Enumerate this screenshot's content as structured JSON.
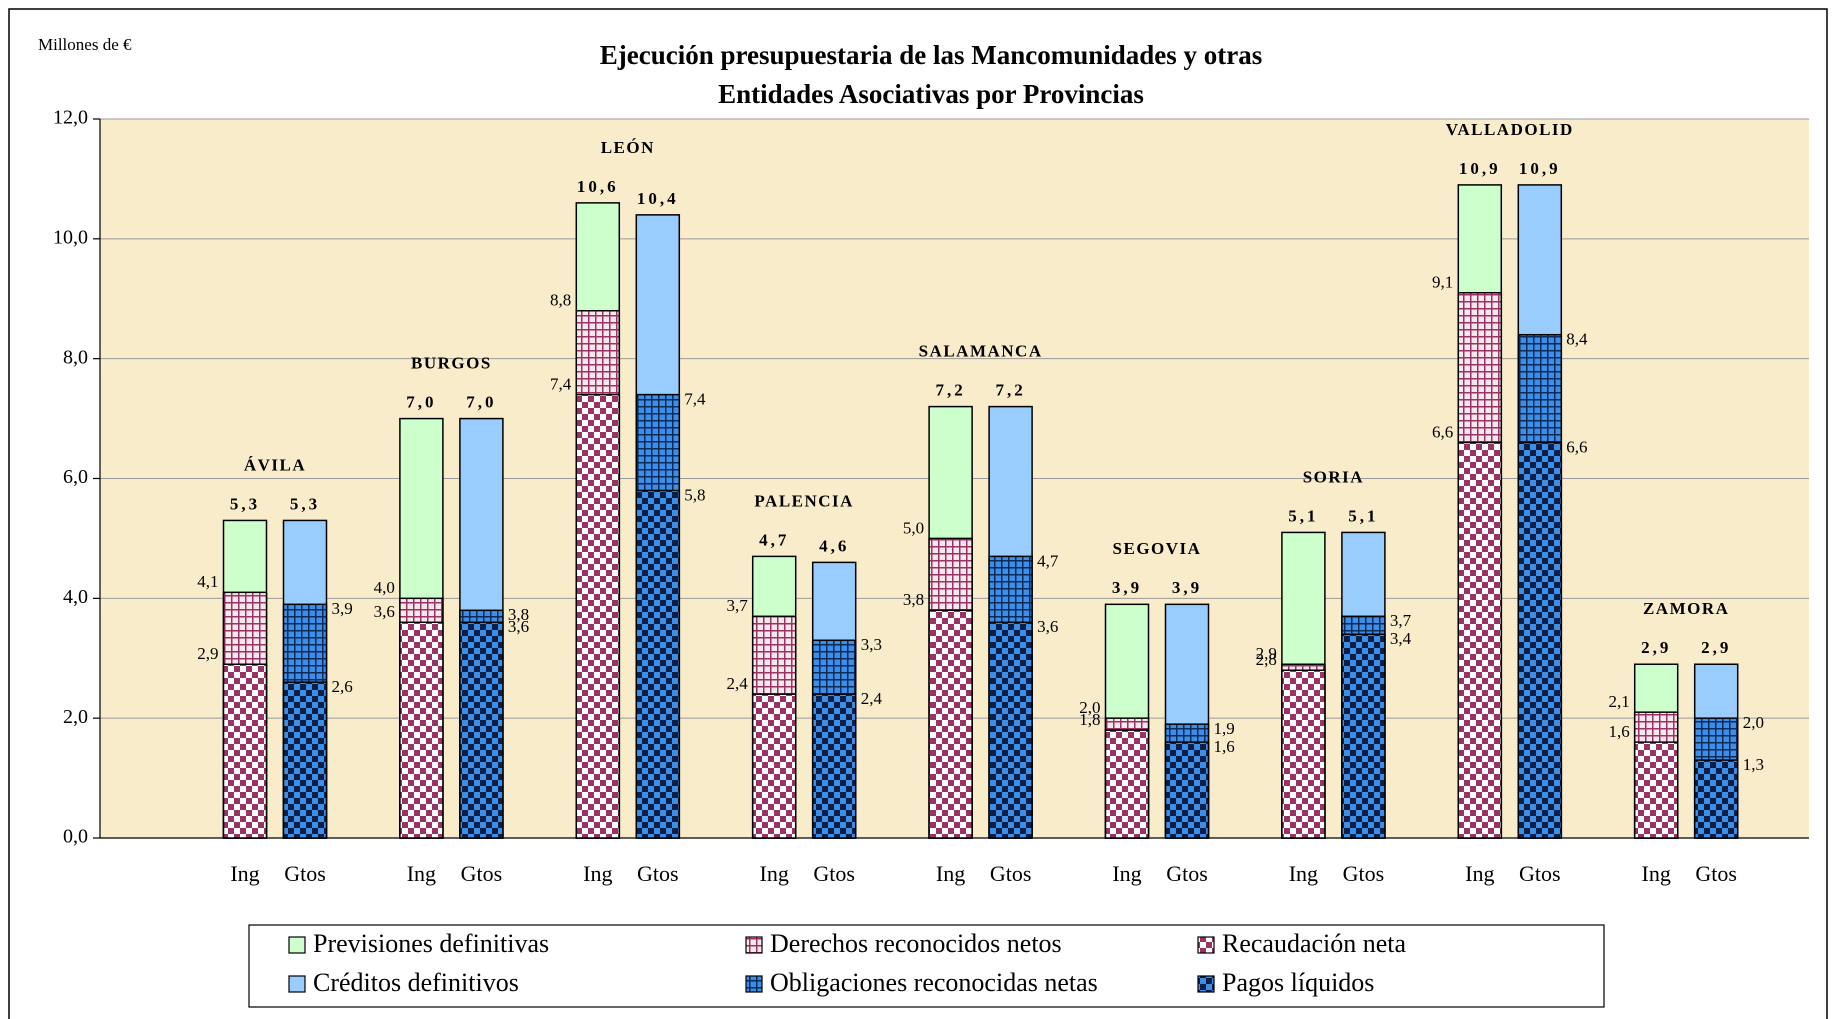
{
  "chart_data": {
    "type": "bar",
    "unit_label": "Millones de €",
    "title": [
      "Ejecución presupuestaria de las Mancomunidades y otras",
      "Entidades Asociativas  por Provincias"
    ],
    "categories": [
      "ÁVILA",
      "BURGOS",
      "LEÓN",
      "PALENCIA",
      "SALAMANCA",
      "SEGOVIA",
      "SORIA",
      "VALLADOLID",
      "ZAMORA"
    ],
    "ylim": [
      0,
      12
    ],
    "yticks": [
      {
        "value": 0,
        "label": "0,0"
      },
      {
        "value": 2,
        "label": "2,0"
      },
      {
        "value": 4,
        "label": "4,0"
      },
      {
        "value": 6,
        "label": "6,0"
      },
      {
        "value": 8,
        "label": "8,0"
      },
      {
        "value": 10,
        "label": "10,0"
      },
      {
        "value": 12,
        "label": "12,0"
      }
    ],
    "grid": true,
    "legend": "bottom",
    "bars": [
      {
        "label": "Ing",
        "series": [
          {
            "name": "Previsiones definitivas",
            "pattern": "solid",
            "color": "#ccffcc",
            "values": [
              5.3,
              7.0,
              10.6,
              4.7,
              7.2,
              3.9,
              5.1,
              10.9,
              2.9
            ],
            "value_labels": [
              "5,3",
              "7,0",
              "10,6",
              "4,7",
              "7,2",
              "3,9",
              "5,1",
              "10,9",
              "2,9"
            ]
          },
          {
            "name": "Derechos reconocidos netos",
            "pattern": "grid",
            "color": "#fbe8ec",
            "pattern_color": "#993366",
            "values": [
              4.1,
              4.0,
              8.8,
              3.7,
              5.0,
              2.0,
              2.9,
              9.1,
              2.1
            ],
            "value_labels": [
              "4,1",
              "4,0",
              "8,8",
              "3,7",
              "5,0",
              "2,0",
              "2,9",
              "9,1",
              "2,1"
            ]
          },
          {
            "name": "Recaudación neta",
            "pattern": "checker",
            "color": "#ffffff",
            "pattern_color": "#993366",
            "values": [
              2.9,
              3.6,
              7.4,
              2.4,
              3.8,
              1.8,
              2.8,
              6.6,
              1.6
            ],
            "value_labels": [
              "2,9",
              "3,6",
              "7,4",
              "2,4",
              "3,8",
              "1,8",
              "2,8",
              "6,6",
              "1,6"
            ]
          }
        ]
      },
      {
        "label": "Gtos",
        "series": [
          {
            "name": "Créditos definitivos",
            "pattern": "solid",
            "color": "#99ccff",
            "values": [
              5.3,
              7.0,
              10.4,
              4.6,
              7.2,
              3.9,
              5.1,
              10.9,
              2.9
            ],
            "value_labels": [
              "5,3",
              "7,0",
              "10,4",
              "4,6",
              "7,2",
              "3,9",
              "5,1",
              "10,9",
              "2,9"
            ]
          },
          {
            "name": "Obligaciones reconocidas netas",
            "pattern": "grid",
            "color": "#3c8ee6",
            "pattern_color": "#0a2a5a",
            "values": [
              3.9,
              3.8,
              7.4,
              3.3,
              4.7,
              1.9,
              3.7,
              8.4,
              2.0
            ],
            "value_labels": [
              "3,9",
              "3,8",
              "7,4",
              "3,3",
              "4,7",
              "1,9",
              "3,7",
              "8,4",
              "2,0"
            ]
          },
          {
            "name": "Pagos líquidos",
            "pattern": "checker",
            "color": "#3c8ee6",
            "pattern_color": "#0a1e4a",
            "values": [
              2.6,
              3.6,
              5.8,
              2.4,
              3.6,
              1.6,
              3.4,
              6.6,
              1.3
            ],
            "value_labels": [
              "2,6",
              "3,6",
              "5,8",
              "2,4",
              "3,6",
              "1,6",
              "3,4",
              "6,6",
              "1,3"
            ]
          }
        ]
      }
    ]
  }
}
